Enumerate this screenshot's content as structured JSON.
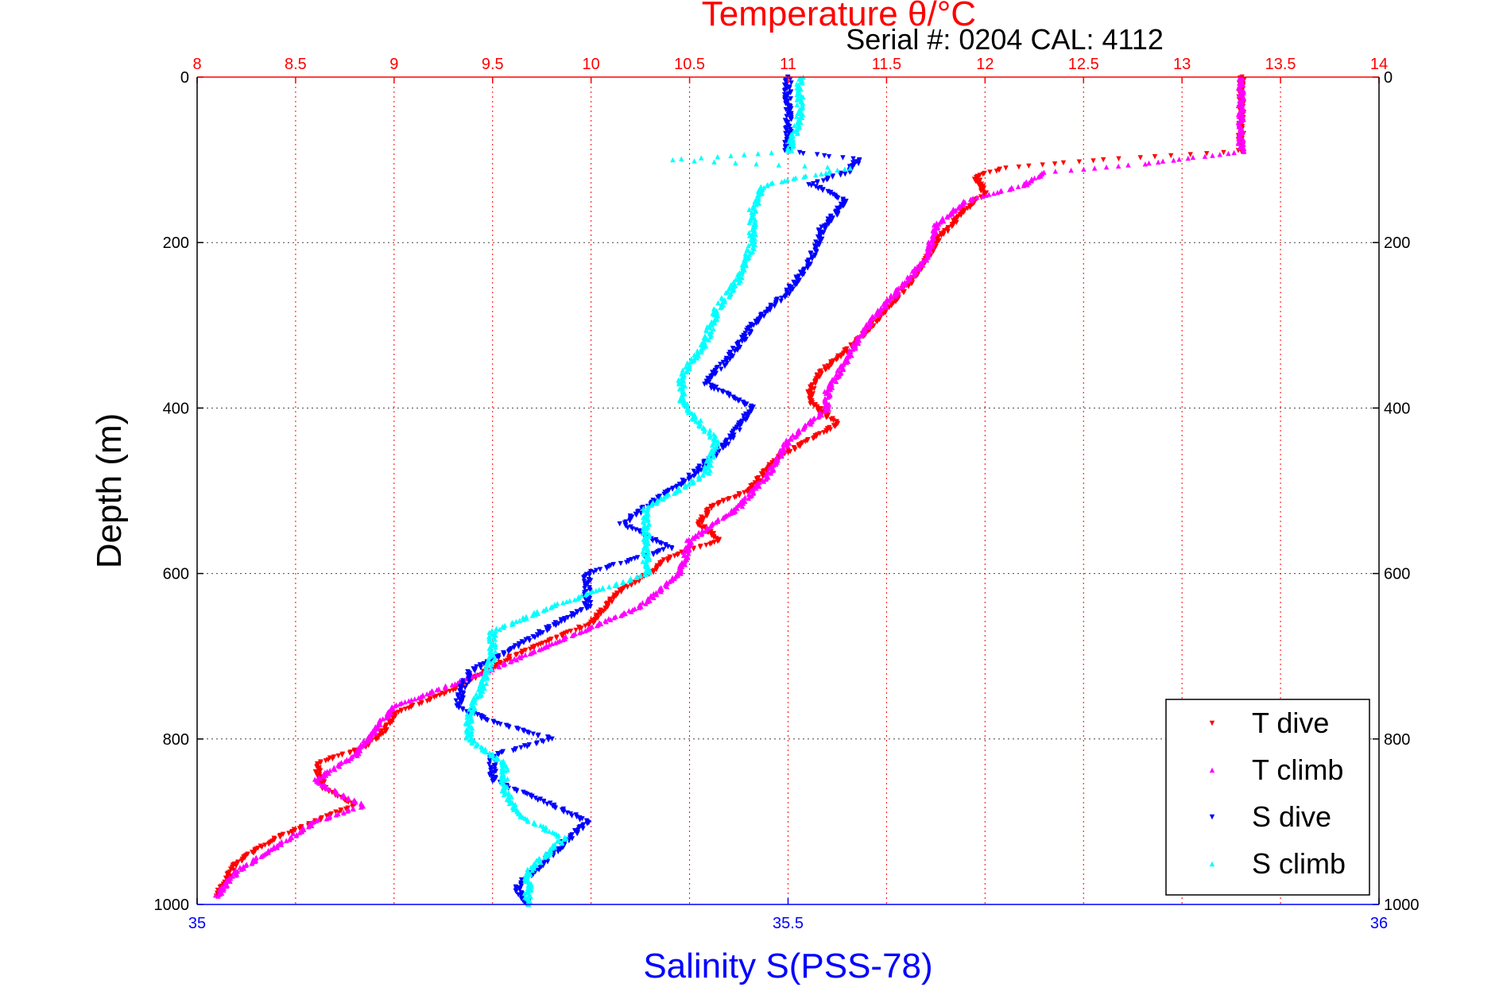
{
  "chart_data": {
    "type": "scatter",
    "title": "Temperature θ/°C",
    "subtitle": "Serial #: 0204  CAL: 4112",
    "xlabel_top": "Temperature θ/°C",
    "xlabel_bottom": "Salinity S(PSS-78)",
    "ylabel": "Depth (m)",
    "temperature_axis": {
      "lim": [
        8,
        14
      ],
      "ticks": [
        "8",
        "8.5",
        "9",
        "9.5",
        "10",
        "10.5",
        "11",
        "11.5",
        "12",
        "12.5",
        "13",
        "13.5",
        "14"
      ]
    },
    "salinity_axis": {
      "lim": [
        35,
        36
      ],
      "ticks": [
        "35",
        "35.5",
        "36"
      ]
    },
    "depth_axis": {
      "lim": [
        0,
        1000
      ],
      "reversed": true,
      "ticks": [
        "0",
        "200",
        "400",
        "600",
        "800",
        "1000"
      ]
    },
    "grid": true,
    "legend_position": "bottom-right",
    "colors": {
      "temperature": "#ff0000",
      "salinity": "#0000ff",
      "t_dive": "#ff0000",
      "t_climb": "#ff00ff",
      "s_dive": "#0000ff",
      "s_climb": "#00ffff",
      "grid": "#444444"
    },
    "series": [
      {
        "name": "T dive",
        "variable": "temperature",
        "marker": "triangle-down",
        "depth": [
          0,
          50,
          90,
          100,
          110,
          120,
          140,
          160,
          200,
          240,
          280,
          320,
          360,
          390,
          420,
          460,
          500,
          520,
          540,
          560,
          580,
          600,
          620,
          660,
          700,
          740,
          770,
          790,
          810,
          830,
          860,
          880,
          900,
          920,
          950,
          990
        ],
        "values": [
          13.3,
          13.3,
          13.3,
          12.6,
          12.1,
          11.95,
          12.0,
          11.9,
          11.75,
          11.65,
          11.5,
          11.35,
          11.15,
          11.1,
          11.25,
          10.95,
          10.8,
          10.6,
          10.55,
          10.65,
          10.4,
          10.3,
          10.15,
          10.0,
          9.6,
          9.3,
          9.0,
          8.95,
          8.85,
          8.6,
          8.65,
          8.8,
          8.6,
          8.4,
          8.2,
          8.1
        ]
      },
      {
        "name": "T climb",
        "variable": "temperature",
        "marker": "triangle-up",
        "depth": [
          0,
          50,
          90,
          105,
          115,
          130,
          150,
          180,
          220,
          260,
          300,
          340,
          380,
          400,
          440,
          480,
          520,
          560,
          600,
          640,
          680,
          720,
          760,
          790,
          820,
          850,
          870,
          880,
          900,
          930,
          960,
          990
        ],
        "values": [
          13.3,
          13.3,
          13.3,
          12.8,
          12.3,
          12.2,
          11.9,
          11.75,
          11.7,
          11.55,
          11.4,
          11.3,
          11.2,
          11.2,
          11.0,
          10.9,
          10.75,
          10.5,
          10.45,
          10.25,
          9.85,
          9.45,
          9.0,
          8.9,
          8.8,
          8.6,
          8.75,
          8.85,
          8.6,
          8.4,
          8.2,
          8.1
        ]
      },
      {
        "name": "S dive",
        "variable": "salinity",
        "marker": "triangle-down",
        "depth": [
          0,
          50,
          90,
          100,
          115,
          130,
          150,
          180,
          220,
          260,
          300,
          340,
          370,
          400,
          440,
          480,
          520,
          540,
          570,
          600,
          640,
          680,
          720,
          760,
          780,
          800,
          820,
          850,
          880,
          900,
          940,
          980,
          1000
        ],
        "values": [
          35.5,
          35.5,
          35.5,
          35.56,
          35.55,
          35.52,
          35.55,
          35.53,
          35.52,
          35.5,
          35.47,
          35.45,
          35.43,
          35.47,
          35.45,
          35.42,
          35.38,
          35.36,
          35.4,
          35.33,
          35.33,
          35.28,
          35.23,
          35.22,
          35.25,
          35.3,
          35.25,
          35.25,
          35.3,
          35.33,
          35.3,
          35.27,
          35.28
        ]
      },
      {
        "name": "S climb",
        "variable": "salinity",
        "marker": "triangle-up",
        "depth": [
          0,
          50,
          90,
          100,
          110,
          130,
          160,
          200,
          240,
          280,
          320,
          360,
          390,
          410,
          440,
          480,
          520,
          560,
          600,
          640,
          670,
          700,
          740,
          770,
          800,
          830,
          860,
          890,
          920,
          960,
          1000
        ],
        "values": [
          35.51,
          35.51,
          35.5,
          35.4,
          35.55,
          35.48,
          35.47,
          35.47,
          35.46,
          35.44,
          35.43,
          35.41,
          35.41,
          35.42,
          35.44,
          35.43,
          35.38,
          35.38,
          35.38,
          35.3,
          35.25,
          35.25,
          35.24,
          35.23,
          35.23,
          35.26,
          35.26,
          35.27,
          35.31,
          35.28,
          35.28
        ]
      }
    ]
  }
}
